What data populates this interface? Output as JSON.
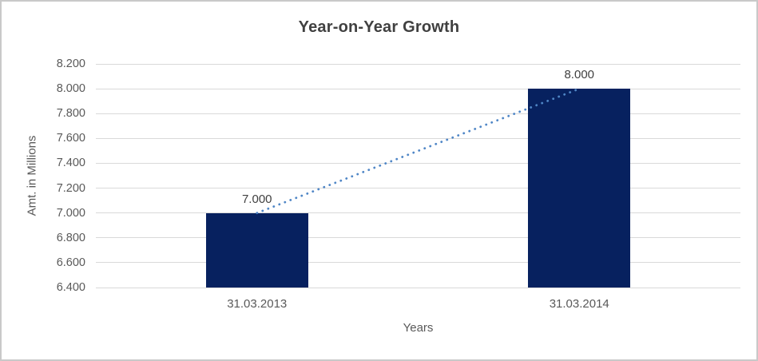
{
  "frame": {
    "background": "#FFFFFF",
    "border_color": "#C9C9C9"
  },
  "chart_data": {
    "type": "bar",
    "title": "Year-on-Year Growth",
    "xlabel": "Years",
    "ylabel": "Amt. in Millions",
    "categories": [
      "31.03.2013",
      "31.03.2014"
    ],
    "values": [
      7000,
      8000
    ],
    "data_labels": [
      "7.000",
      "8.000"
    ],
    "ylim": [
      6400,
      8200
    ],
    "ytick_step": 200,
    "ytick_labels": [
      "6.400",
      "6.600",
      "6.800",
      "7.000",
      "7.200",
      "7.400",
      "7.600",
      "7.800",
      "8.000",
      "8.200"
    ],
    "grid": true,
    "legend_position": "none",
    "trendline_style": "dotted",
    "colors": {
      "bar": "#07215F",
      "trendline": "#4F86C6",
      "gridline": "#D9D9D9",
      "tick_text": "#595959",
      "title_text": "#404040",
      "data_label_text": "#404040"
    }
  }
}
